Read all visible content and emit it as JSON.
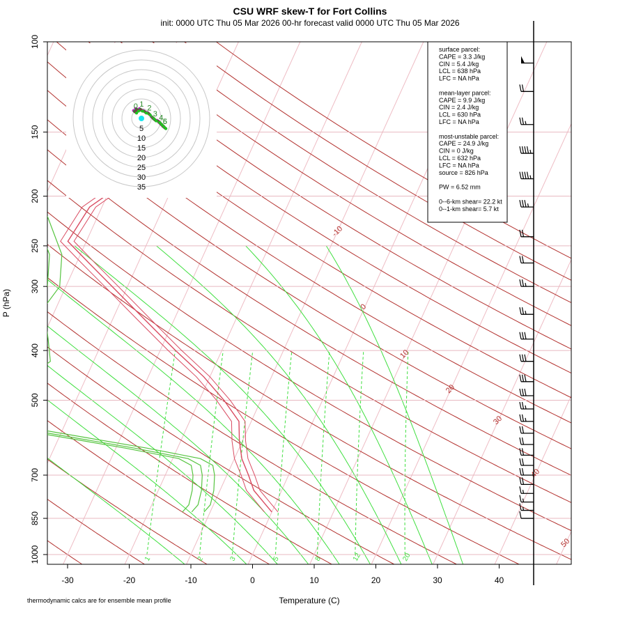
{
  "header": {
    "title": "CSU WRF skew-T for Fort Collins",
    "subtitle": "init: 0000 UTC Thu 05 Mar 2026     00-hr forecast valid 0000 UTC Thu 05 Mar 2026"
  },
  "footnote": "thermodynamic calcs are for ensemble mean profile",
  "info_box": {
    "lines": [
      "surface parcel:",
      "CAPE = 3.3 J/kg",
      "CIN = 5.4 J/kg",
      "LCL = 638 hPa",
      "LFC = NA hPa",
      "",
      "mean-layer parcel:",
      "CAPE = 9.9 J/kg",
      "CIN = 2.4 J/kg",
      "LCL = 630 hPa",
      "LFC = NA hPa",
      "",
      "most-unstable parcel:",
      "CAPE = 24.9 J/kg",
      "CIN = 0 J/kg",
      "LCL = 632 hPa",
      "LFC = NA hPa",
      "source = 826 hPa",
      "",
      "PW =  6.52 mm",
      "",
      "0--6-km shear= 22.2 kt",
      "0--1-km shear= 5.7 kt"
    ]
  },
  "chart_data": {
    "type": "line",
    "xlabel": "Temperature (C)",
    "ylabel": "P (hPa)",
    "xlim": [
      -33,
      46
    ],
    "ylim": [
      1050,
      100
    ],
    "y_scale": "log",
    "x_ticks": [
      -30,
      -20,
      -10,
      0,
      10,
      20,
      30,
      40
    ],
    "y_ticks": [
      100,
      150,
      200,
      250,
      300,
      400,
      500,
      700,
      850,
      1000
    ],
    "isotherm_labels": [
      "-10",
      "0",
      "10",
      "20",
      "30",
      "40",
      "50"
    ],
    "mixing_ratio_labels": [
      "1",
      "2",
      "3",
      "5",
      "8",
      "12",
      "20"
    ],
    "temperature_profile": {
      "name": "temperature",
      "color": "#d94a60",
      "p": [
        826,
        800,
        750,
        700,
        650,
        600,
        550,
        500,
        450,
        400,
        350,
        300,
        270,
        245,
        210,
        190,
        170,
        150,
        130,
        115
      ],
      "t": [
        0.0,
        -1.5,
        -4.5,
        -6.5,
        -8.8,
        -10.5,
        -12.0,
        -16.0,
        -21.0,
        -27.5,
        -34.5,
        -42.5,
        -48.0,
        -53.0,
        -52.0,
        -48.5,
        -47.5,
        -46.0,
        -46.0,
        -47.0
      ]
    },
    "dewpoint_profile": {
      "name": "dewpoint",
      "color": "#55c43f",
      "p": [
        826,
        800,
        750,
        700,
        670,
        650,
        620,
        580,
        540,
        500,
        460,
        420,
        380,
        330,
        300,
        260,
        220,
        200
      ],
      "t": [
        -13.0,
        -12.5,
        -13.0,
        -14.0,
        -15.0,
        -17.5,
        -27.0,
        -42.0,
        -58.0,
        -56.0,
        -52.0,
        -49.0,
        -51.0,
        -54.0,
        -53.0,
        -55.0,
        -60.0,
        -64.0
      ]
    },
    "hodograph": {
      "ring_labels": [
        "5",
        "10",
        "15",
        "20",
        "25",
        "30",
        "35"
      ],
      "ring_speeds_kt": [
        5,
        10,
        15,
        20,
        25,
        30,
        35
      ],
      "u_kt": [
        -4,
        -3,
        -1,
        1,
        3,
        5,
        6,
        8,
        9,
        10,
        11
      ],
      "v_kt": [
        4,
        5,
        5,
        4,
        3,
        1,
        0,
        -1,
        -2,
        -3,
        -4
      ],
      "point_labels": [
        "0",
        "1",
        "2",
        "3",
        "4",
        "5",
        "6"
      ]
    },
    "wind_barbs": {
      "p": [
        850,
        820,
        790,
        760,
        730,
        700,
        670,
        640,
        610,
        580,
        550,
        520,
        490,
        460,
        420,
        380,
        340,
        300,
        270,
        240,
        210,
        185,
        165,
        145,
        125,
        110
      ],
      "speed_kt": [
        12,
        15,
        15,
        18,
        20,
        20,
        22,
        22,
        24,
        24,
        26,
        28,
        30,
        32,
        32,
        30,
        28,
        25,
        22,
        20,
        35,
        45,
        45,
        25,
        20,
        50
      ]
    }
  }
}
